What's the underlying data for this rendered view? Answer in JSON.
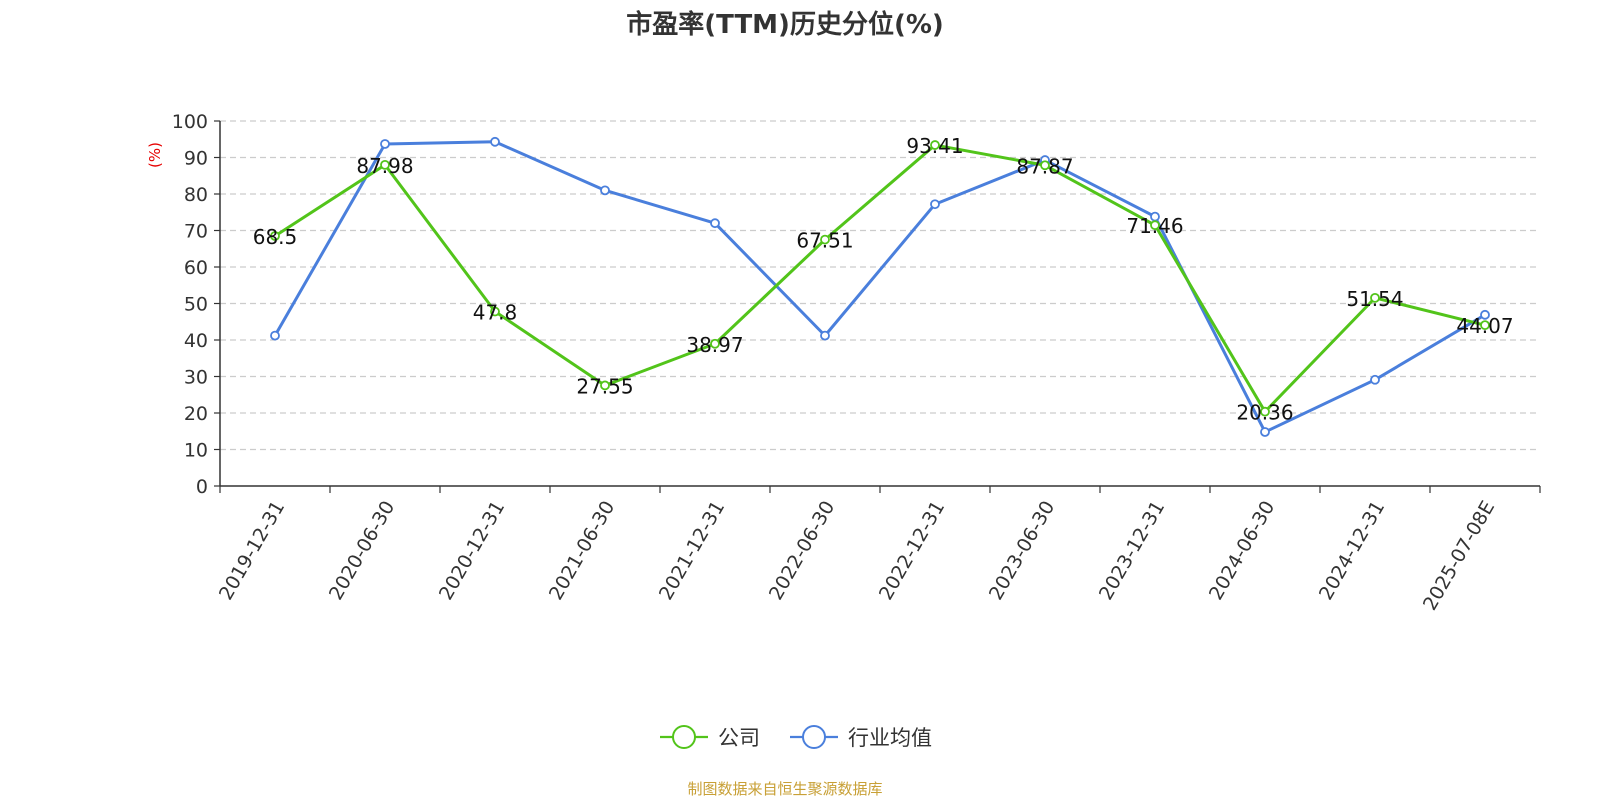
{
  "chart_data": {
    "type": "line",
    "title": "市盈率(TTM)历史分位(%)",
    "ylabel": "(%)",
    "ylim": [
      0,
      100
    ],
    "yticks": [
      0,
      10,
      20,
      30,
      40,
      50,
      60,
      70,
      80,
      90,
      100
    ],
    "grid": true,
    "legend_position": "bottom",
    "categories": [
      "2019-12-31",
      "2020-06-30",
      "2020-12-31",
      "2021-06-30",
      "2021-12-31",
      "2022-06-30",
      "2022-12-31",
      "2023-06-30",
      "2023-12-31",
      "2024-06-30",
      "2024-12-31",
      "2025-07-08E"
    ],
    "series": [
      {
        "name": "公司",
        "color": "#52c41a",
        "values": [
          68.5,
          87.98,
          47.8,
          27.55,
          38.97,
          67.51,
          93.41,
          87.87,
          71.46,
          20.36,
          51.54,
          44.07
        ],
        "labels": [
          "68.5",
          "87.98",
          "47.8",
          "27.55",
          "38.97",
          "67.51",
          "93.41",
          "87.87",
          "71.46",
          "20.36",
          "51.54",
          "44.07"
        ]
      },
      {
        "name": "行业均值",
        "color": "#4a7fdc",
        "values": [
          41.2,
          93.7,
          94.3,
          81.0,
          72.0,
          41.2,
          77.2,
          89.3,
          73.8,
          14.8,
          29.1,
          46.9
        ]
      }
    ],
    "source": "制图数据来自恒生聚源数据库"
  }
}
